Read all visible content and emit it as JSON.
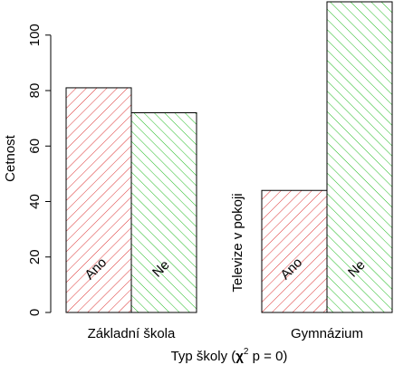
{
  "chart_data": {
    "type": "bar",
    "title": "",
    "xlabel": {
      "prefix": "Typ školy (",
      "chi": "χ",
      "sup": "2",
      "suffix": " p = 0)"
    },
    "ylabel": "Cetnost",
    "ylim": [
      0,
      112
    ],
    "yticks": [
      0,
      20,
      40,
      60,
      80,
      100
    ],
    "grid": false,
    "legend_title": "Televize v pokoji",
    "groups": [
      {
        "name": "Základní škola",
        "bars": [
          {
            "label": "Ano",
            "value": 81,
            "color": "#dd3333"
          },
          {
            "label": "Ne",
            "value": 72,
            "color": "#22bb22"
          }
        ]
      },
      {
        "name": "Gymnázium",
        "bars": [
          {
            "label": "Ano",
            "value": 44,
            "color": "#dd3333"
          },
          {
            "label": "Ne",
            "value": 112,
            "color": "#22bb22"
          }
        ]
      }
    ]
  }
}
